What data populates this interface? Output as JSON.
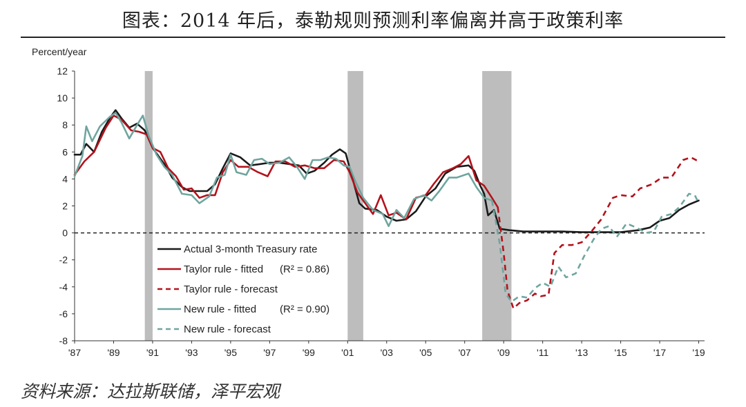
{
  "title": "图表：2014 年后，泰勒规则预测利率偏离并高于政策利率",
  "source": "资料来源：达拉斯联储，泽平宏观",
  "chart_data": {
    "type": "line",
    "ylabel": "Percent/year",
    "ylim": [
      -8,
      12
    ],
    "yticks": [
      -8,
      -6,
      -4,
      -2,
      0,
      2,
      4,
      6,
      8,
      10,
      12
    ],
    "xlim": [
      1987,
      2019.3
    ],
    "xticks": [
      {
        "x": 1987,
        "label": "'87"
      },
      {
        "x": 1989,
        "label": "'89"
      },
      {
        "x": 1991,
        "label": "'91"
      },
      {
        "x": 1993,
        "label": "'93"
      },
      {
        "x": 1995,
        "label": "'95"
      },
      {
        "x": 1997,
        "label": "'97"
      },
      {
        "x": 1999,
        "label": "'99"
      },
      {
        "x": 2001,
        "label": "'01"
      },
      {
        "x": 2003,
        "label": "'03"
      },
      {
        "x": 2005,
        "label": "'05"
      },
      {
        "x": 2007,
        "label": "'07"
      },
      {
        "x": 2009,
        "label": "'09"
      },
      {
        "x": 2011,
        "label": "'11"
      },
      {
        "x": 2013,
        "label": "'13"
      },
      {
        "x": 2015,
        "label": "'15"
      },
      {
        "x": 2017,
        "label": "'17"
      },
      {
        "x": 2019,
        "label": "'19"
      }
    ],
    "recessions": [
      [
        1990.6,
        1991.0
      ],
      [
        2001.0,
        2001.8
      ],
      [
        2007.9,
        2009.4
      ]
    ],
    "zero_line": true,
    "legend": [
      {
        "label": "Actual 3-month Treasury rate",
        "color": "#1a1a1a",
        "dash": false,
        "r2": ""
      },
      {
        "label": "Taylor rule - fitted",
        "color": "#b3121c",
        "dash": false,
        "r2": "(R² = 0.86)"
      },
      {
        "label": "Taylor rule - forecast",
        "color": "#b3121c",
        "dash": true,
        "r2": ""
      },
      {
        "label": "New rule - fitted",
        "color": "#6fa59f",
        "dash": false,
        "r2": "(R² = 0.90)"
      },
      {
        "label": "New rule - forecast",
        "color": "#6fa59f",
        "dash": true,
        "r2": ""
      }
    ],
    "series": [
      {
        "name": "Actual 3-month Treasury rate",
        "color": "#1a1a1a",
        "dash": false,
        "points": [
          [
            1987,
            5.8
          ],
          [
            1987.3,
            5.8
          ],
          [
            1987.6,
            6.6
          ],
          [
            1988,
            6.0
          ],
          [
            1988.4,
            7.5
          ],
          [
            1988.8,
            8.5
          ],
          [
            1989.1,
            9.1
          ],
          [
            1989.4,
            8.5
          ],
          [
            1989.8,
            7.8
          ],
          [
            1990.2,
            8.1
          ],
          [
            1990.6,
            7.6
          ],
          [
            1991,
            6.3
          ],
          [
            1991.3,
            5.7
          ],
          [
            1991.7,
            4.9
          ],
          [
            1992,
            4.1
          ],
          [
            1992.5,
            3.4
          ],
          [
            1992.9,
            3.1
          ],
          [
            1993.3,
            3.1
          ],
          [
            1993.8,
            3.1
          ],
          [
            1994.2,
            3.6
          ],
          [
            1994.6,
            4.8
          ],
          [
            1995,
            5.9
          ],
          [
            1995.5,
            5.6
          ],
          [
            1996,
            5.0
          ],
          [
            1996.5,
            5.1
          ],
          [
            1997,
            5.2
          ],
          [
            1997.5,
            5.2
          ],
          [
            1998,
            5.1
          ],
          [
            1998.5,
            5.0
          ],
          [
            1998.9,
            4.4
          ],
          [
            1999.3,
            4.6
          ],
          [
            1999.8,
            5.2
          ],
          [
            2000.2,
            5.8
          ],
          [
            2000.6,
            6.2
          ],
          [
            2000.9,
            5.9
          ],
          [
            2001.2,
            4.3
          ],
          [
            2001.6,
            2.2
          ],
          [
            2001.9,
            1.8
          ],
          [
            2002.5,
            1.7
          ],
          [
            2003,
            1.2
          ],
          [
            2003.5,
            0.9
          ],
          [
            2004,
            1.0
          ],
          [
            2004.5,
            1.6
          ],
          [
            2005,
            2.7
          ],
          [
            2005.5,
            3.3
          ],
          [
            2006,
            4.4
          ],
          [
            2006.6,
            4.9
          ],
          [
            2007.2,
            5.0
          ],
          [
            2007.5,
            4.6
          ],
          [
            2007.8,
            3.5
          ],
          [
            2008,
            2.9
          ],
          [
            2008.2,
            1.3
          ],
          [
            2008.5,
            1.7
          ],
          [
            2008.8,
            0.3
          ],
          [
            2009.3,
            0.2
          ],
          [
            2010,
            0.1
          ],
          [
            2011,
            0.1
          ],
          [
            2012,
            0.1
          ],
          [
            2013,
            0.05
          ],
          [
            2014,
            0.05
          ],
          [
            2015,
            0.05
          ],
          [
            2015.9,
            0.2
          ],
          [
            2016.5,
            0.4
          ],
          [
            2017,
            0.9
          ],
          [
            2017.5,
            1.1
          ],
          [
            2018,
            1.7
          ],
          [
            2018.5,
            2.1
          ],
          [
            2019,
            2.4
          ]
        ]
      },
      {
        "name": "Taylor rule - fitted",
        "color": "#b3121c",
        "dash": false,
        "points": [
          [
            1987,
            4.3
          ],
          [
            1987.5,
            5.3
          ],
          [
            1988,
            6.0
          ],
          [
            1988.6,
            7.8
          ],
          [
            1989,
            8.7
          ],
          [
            1989.4,
            8.4
          ],
          [
            1989.9,
            7.6
          ],
          [
            1990.3,
            7.5
          ],
          [
            1990.7,
            7.3
          ],
          [
            1991,
            6.3
          ],
          [
            1991.4,
            6.0
          ],
          [
            1991.8,
            4.8
          ],
          [
            1992.2,
            4.2
          ],
          [
            1992.6,
            3.2
          ],
          [
            1993,
            3.3
          ],
          [
            1993.4,
            2.6
          ],
          [
            1993.8,
            2.8
          ],
          [
            1994.2,
            2.8
          ],
          [
            1994.6,
            4.5
          ],
          [
            1995,
            5.4
          ],
          [
            1995.4,
            4.9
          ],
          [
            1995.9,
            4.9
          ],
          [
            1996.4,
            4.5
          ],
          [
            1996.9,
            4.2
          ],
          [
            1997.3,
            5.3
          ],
          [
            1997.8,
            5.3
          ],
          [
            1998.3,
            4.9
          ],
          [
            1998.8,
            5.0
          ],
          [
            1999.3,
            4.8
          ],
          [
            1999.8,
            4.8
          ],
          [
            2000.3,
            5.4
          ],
          [
            2000.8,
            5.3
          ],
          [
            2001.1,
            4.5
          ],
          [
            2001.5,
            3.0
          ],
          [
            2001.8,
            2.4
          ],
          [
            2002.3,
            1.4
          ],
          [
            2002.7,
            2.8
          ],
          [
            2003.1,
            1.3
          ],
          [
            2003.5,
            1.5
          ],
          [
            2004,
            1.0
          ],
          [
            2004.5,
            2.6
          ],
          [
            2005,
            2.8
          ],
          [
            2005.4,
            3.6
          ],
          [
            2005.9,
            4.5
          ],
          [
            2006.4,
            4.8
          ],
          [
            2006.8,
            5.1
          ],
          [
            2007.2,
            5.7
          ],
          [
            2007.6,
            3.9
          ],
          [
            2008,
            3.5
          ],
          [
            2008.4,
            2.6
          ],
          [
            2008.7,
            1.9
          ]
        ]
      },
      {
        "name": "Taylor rule - forecast",
        "color": "#b3121c",
        "dash": true,
        "points": [
          [
            2008.7,
            1.9
          ],
          [
            2009,
            -1.5
          ],
          [
            2009.2,
            -4.3
          ],
          [
            2009.5,
            -5.6
          ],
          [
            2009.8,
            -5.2
          ],
          [
            2010.2,
            -5.0
          ],
          [
            2010.6,
            -4.5
          ],
          [
            2010.9,
            -4.7
          ],
          [
            2011.3,
            -4.6
          ],
          [
            2011.6,
            -1.5
          ],
          [
            2012,
            -0.9
          ],
          [
            2012.5,
            -0.9
          ],
          [
            2013,
            -0.7
          ],
          [
            2013.5,
            0.1
          ],
          [
            2014,
            1.0
          ],
          [
            2014.6,
            2.6
          ],
          [
            2015,
            2.8
          ],
          [
            2015.6,
            2.7
          ],
          [
            2016,
            3.3
          ],
          [
            2016.6,
            3.6
          ],
          [
            2017.1,
            4.1
          ],
          [
            2017.6,
            4.1
          ],
          [
            2018.2,
            5.4
          ],
          [
            2018.6,
            5.6
          ],
          [
            2019,
            5.3
          ]
        ]
      },
      {
        "name": "New rule - fitted",
        "color": "#6fa59f",
        "dash": false,
        "points": [
          [
            1987,
            4.2
          ],
          [
            1987.4,
            5.7
          ],
          [
            1987.6,
            7.9
          ],
          [
            1987.9,
            6.8
          ],
          [
            1988.3,
            7.9
          ],
          [
            1988.8,
            8.6
          ],
          [
            1989.1,
            8.9
          ],
          [
            1989.4,
            8.2
          ],
          [
            1989.8,
            7.0
          ],
          [
            1990.2,
            8.0
          ],
          [
            1990.5,
            8.7
          ],
          [
            1990.8,
            7.2
          ],
          [
            1991.2,
            5.8
          ],
          [
            1991.6,
            4.9
          ],
          [
            1992,
            4.3
          ],
          [
            1992.5,
            2.9
          ],
          [
            1993,
            2.8
          ],
          [
            1993.4,
            2.2
          ],
          [
            1993.9,
            2.7
          ],
          [
            1994.3,
            4.1
          ],
          [
            1994.7,
            4.3
          ],
          [
            1995,
            5.8
          ],
          [
            1995.3,
            4.5
          ],
          [
            1995.8,
            4.3
          ],
          [
            1996.2,
            5.4
          ],
          [
            1996.6,
            5.5
          ],
          [
            1997,
            5.1
          ],
          [
            1997.5,
            5.2
          ],
          [
            1998,
            5.6
          ],
          [
            1998.4,
            4.9
          ],
          [
            1998.8,
            4.0
          ],
          [
            1999.2,
            5.4
          ],
          [
            1999.6,
            5.4
          ],
          [
            2000,
            5.6
          ],
          [
            2000.4,
            5.5
          ],
          [
            2000.8,
            5.0
          ],
          [
            2001.1,
            4.9
          ],
          [
            2001.4,
            3.8
          ],
          [
            2001.8,
            2.6
          ],
          [
            2002.3,
            1.7
          ],
          [
            2002.8,
            1.4
          ],
          [
            2003.1,
            0.5
          ],
          [
            2003.5,
            1.7
          ],
          [
            2003.9,
            1.1
          ],
          [
            2004.4,
            2.5
          ],
          [
            2004.9,
            2.8
          ],
          [
            2005.3,
            2.4
          ],
          [
            2005.7,
            3.1
          ],
          [
            2006.2,
            4.1
          ],
          [
            2006.6,
            4.1
          ],
          [
            2007.2,
            4.4
          ],
          [
            2007.6,
            3.4
          ],
          [
            2008,
            2.6
          ],
          [
            2008.4,
            2.4
          ]
        ]
      },
      {
        "name": "New rule - forecast",
        "color": "#6fa59f",
        "dash": true,
        "points": [
          [
            2008.4,
            2.4
          ],
          [
            2008.8,
            -0.8
          ],
          [
            2009.1,
            -4.5
          ],
          [
            2009.4,
            -5.1
          ],
          [
            2009.8,
            -4.7
          ],
          [
            2010.2,
            -4.8
          ],
          [
            2010.6,
            -4.1
          ],
          [
            2011,
            -3.7
          ],
          [
            2011.4,
            -4.0
          ],
          [
            2011.8,
            -2.5
          ],
          [
            2012.2,
            -3.3
          ],
          [
            2012.7,
            -3.0
          ],
          [
            2013.1,
            -1.8
          ],
          [
            2013.6,
            -0.5
          ],
          [
            2014,
            0.3
          ],
          [
            2014.4,
            0.5
          ],
          [
            2014.8,
            -0.3
          ],
          [
            2015.3,
            0.7
          ],
          [
            2015.8,
            0.4
          ],
          [
            2016.3,
            0.0
          ],
          [
            2016.7,
            0.1
          ],
          [
            2017.1,
            1.2
          ],
          [
            2017.6,
            1.4
          ],
          [
            2018,
            1.9
          ],
          [
            2018.5,
            2.9
          ],
          [
            2018.8,
            2.8
          ],
          [
            2019,
            2.2
          ]
        ]
      }
    ]
  }
}
